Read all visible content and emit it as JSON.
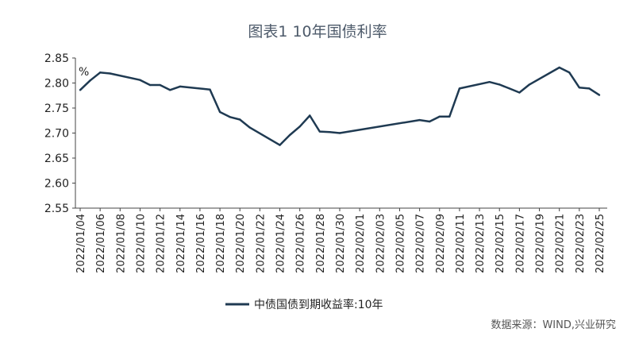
{
  "chart_data": {
    "type": "line",
    "title": "图表1  10年国债利率",
    "ylabel": "%",
    "ylim": [
      2.55,
      2.85
    ],
    "yticks": [
      "2.85",
      "2.80",
      "2.75",
      "2.70",
      "2.65",
      "2.60",
      "2.55"
    ],
    "x_tick_labels": [
      "2022/01/04",
      "2022/01/06",
      "2022/01/08",
      "2022/01/10",
      "2022/01/12",
      "2022/01/14",
      "2022/01/16",
      "2022/01/18",
      "2022/01/20",
      "2022/01/22",
      "2022/01/24",
      "2022/01/26",
      "2022/01/28",
      "2022/01/30",
      "2022/02/01",
      "2022/02/03",
      "2022/02/05",
      "2022/02/07",
      "2022/02/09",
      "2022/02/11",
      "2022/02/13",
      "2022/02/15",
      "2022/02/17",
      "2022/02/19",
      "2022/02/21",
      "2022/02/23",
      "2022/02/25"
    ],
    "x_range": [
      "2022/01/04",
      "2022/02/25"
    ],
    "grid": false,
    "legend_position": "bottom-left",
    "series": [
      {
        "name": "中债国债到期收益率:10年",
        "color": "#1f3a52",
        "points": [
          [
            "2022/01/04",
            2.786
          ],
          [
            "2022/01/05",
            2.805
          ],
          [
            "2022/01/06",
            2.821
          ],
          [
            "2022/01/07",
            2.819
          ],
          [
            "2022/01/10",
            2.806
          ],
          [
            "2022/01/11",
            2.796
          ],
          [
            "2022/01/12",
            2.796
          ],
          [
            "2022/01/13",
            2.786
          ],
          [
            "2022/01/14",
            2.793
          ],
          [
            "2022/01/17",
            2.787
          ],
          [
            "2022/01/18",
            2.742
          ],
          [
            "2022/01/19",
            2.732
          ],
          [
            "2022/01/20",
            2.727
          ],
          [
            "2022/01/21",
            2.711
          ],
          [
            "2022/01/24",
            2.676
          ],
          [
            "2022/01/25",
            2.696
          ],
          [
            "2022/01/26",
            2.713
          ],
          [
            "2022/01/27",
            2.735
          ],
          [
            "2022/01/28",
            2.703
          ],
          [
            "2022/01/29",
            2.702
          ],
          [
            "2022/01/30",
            2.7
          ],
          [
            "2022/02/07",
            2.726
          ],
          [
            "2022/02/08",
            2.723
          ],
          [
            "2022/02/09",
            2.733
          ],
          [
            "2022/02/10",
            2.733
          ],
          [
            "2022/02/11",
            2.789
          ],
          [
            "2022/02/14",
            2.802
          ],
          [
            "2022/02/15",
            2.797
          ],
          [
            "2022/02/16",
            2.789
          ],
          [
            "2022/02/17",
            2.781
          ],
          [
            "2022/02/18",
            2.797
          ],
          [
            "2022/02/21",
            2.831
          ],
          [
            "2022/02/22",
            2.821
          ],
          [
            "2022/02/23",
            2.791
          ],
          [
            "2022/02/24",
            2.789
          ],
          [
            "2022/02/25",
            2.776
          ]
        ]
      }
    ],
    "source": "数据来源：WIND,兴业研究"
  }
}
